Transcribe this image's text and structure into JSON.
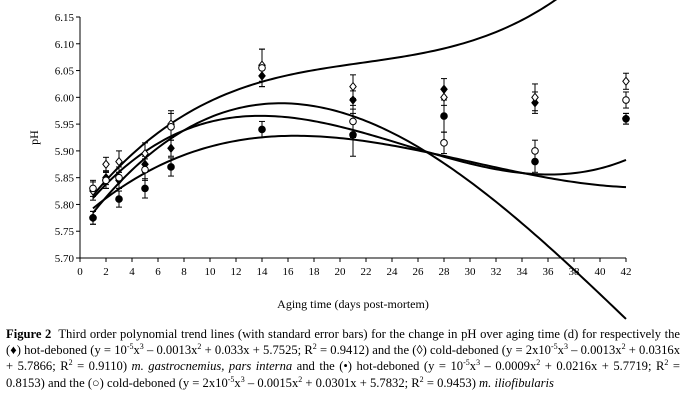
{
  "chart_data": {
    "type": "scatter",
    "xlabel": "Aging time (days post-mortem)",
    "ylabel": "pH",
    "xlim": [
      0,
      42
    ],
    "ylim": [
      5.7,
      6.15
    ],
    "x_ticks": [
      "0",
      "2",
      "4",
      "6",
      "8",
      "10",
      "12",
      "14",
      "16",
      "18",
      "20",
      "22",
      "24",
      "26",
      "28",
      "30",
      "32",
      "34",
      "36",
      "38",
      "40",
      "42"
    ],
    "y_ticks": [
      "5.70",
      "5.75",
      "5.80",
      "5.85",
      "5.90",
      "5.95",
      "6.00",
      "6.05",
      "6.10",
      "6.15"
    ],
    "grid": false,
    "series": [
      {
        "name": "hot-deboned m. gastrocnemius, pars interna",
        "marker": "filled-diamond",
        "x": [
          1,
          2,
          3,
          5,
          7,
          14,
          21,
          28,
          35,
          42
        ],
        "y": [
          5.775,
          5.85,
          5.845,
          5.875,
          5.905,
          6.04,
          5.995,
          6.015,
          5.99,
          5.96
        ],
        "err": [
          0.012,
          0.013,
          0.015,
          0.015,
          0.015,
          0.02,
          0.017,
          0.02,
          0.02,
          0.01
        ],
        "trend": {
          "a": 1e-05,
          "b": -0.0013,
          "c": 0.033,
          "d": 5.7525
        }
      },
      {
        "name": "cold-deboned m. gastrocnemius, pars interna",
        "marker": "open-diamond",
        "x": [
          1,
          2,
          3,
          5,
          7,
          14,
          21,
          28,
          35,
          42
        ],
        "y": [
          5.825,
          5.875,
          5.88,
          5.895,
          5.95,
          6.06,
          6.02,
          6.0,
          6.0,
          6.03
        ],
        "err": [
          0.017,
          0.013,
          0.02,
          0.02,
          0.025,
          0.03,
          0.022,
          0.015,
          0.025,
          0.015
        ],
        "trend": {
          "a": 2e-05,
          "b": -0.0013,
          "c": 0.0316,
          "d": 5.7866
        }
      },
      {
        "name": "hot-deboned m. iliofibularis",
        "marker": "filled-circle",
        "x": [
          1,
          2,
          3,
          5,
          7,
          14,
          21,
          28,
          35,
          42
        ],
        "y": [
          5.775,
          5.845,
          5.81,
          5.83,
          5.87,
          5.94,
          5.93,
          5.965,
          5.88,
          5.96
        ],
        "err": [
          0.012,
          0.015,
          0.015,
          0.018,
          0.017,
          0.015,
          0.04,
          0.03,
          0.02,
          0.01
        ],
        "trend": {
          "a": 1e-05,
          "b": -0.0009,
          "c": 0.0216,
          "d": 5.7719
        }
      },
      {
        "name": "cold-deboned m. iliofibularis",
        "marker": "open-circle",
        "x": [
          1,
          2,
          3,
          5,
          7,
          14,
          21,
          28,
          35,
          42
        ],
        "y": [
          5.83,
          5.845,
          5.85,
          5.865,
          5.945,
          6.055,
          5.955,
          5.915,
          5.9,
          5.995
        ],
        "err": [
          0.015,
          0.015,
          0.02,
          0.02,
          0.025,
          0.035,
          0.03,
          0.02,
          0.02,
          0.015
        ],
        "trend": {
          "a": 2e-05,
          "b": -0.0015,
          "c": 0.0301,
          "d": 5.7832
        }
      }
    ]
  },
  "caption": {
    "label": "Figure 2",
    "p1": "Third order polynomial trend lines (with standard error bars) for the change in pH over aging time (d) for respectively the (♦) hot-deboned (y = 10",
    "s1": "-5",
    "p2": "x",
    "s2": "3",
    "p3": " – 0.0013x",
    "s3": "2",
    "p4": " + 0.033x + 5.7525; R",
    "s4": "2",
    "p5": " = 0.9412) and the (◊) cold-deboned (y = 2x10",
    "s5": "-5",
    "p6": "x",
    "s6": "3",
    "p7": " – 0.0013x",
    "s7": "2",
    "p8": " + 0.0316x + 5.7866; R",
    "s8": "2",
    "p9": " = 0.9110) ",
    "i1": "m. gastrocnemius, pars interna",
    "p10": " and the (•) hot-deboned (y = 10",
    "s9": "-5",
    "p11": "x",
    "s10": "3",
    "p12": " – 0.0009x",
    "s11": "2",
    "p13": " + 0.0216x + 5.7719; R",
    "s12": "2",
    "p14": " = 0.8153) and the (○) cold-deboned (y = 2x10",
    "s13": "-5",
    "p15": "x",
    "s14": "3",
    "p16": " – 0.0015x",
    "s15": "2",
    "p17": " + 0.0301x + 5.7832; R",
    "s16": "2",
    "p18": " = 0.9453) ",
    "i2": "m. iliofibularis"
  }
}
